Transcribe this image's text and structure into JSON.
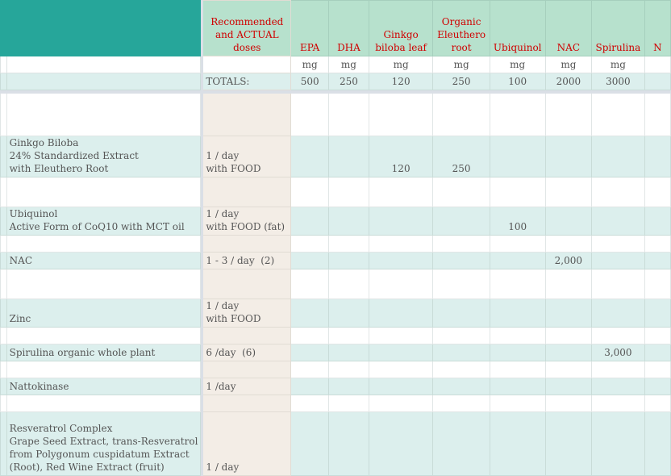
{
  "header": {
    "dose_label": "Recommended and ACTUAL doses",
    "columns": [
      "EPA",
      "DHA",
      "Ginkgo biloba leaf",
      "Organic Eleuthero root",
      "Ubiquinol",
      "NAC",
      "Spirulina",
      "N"
    ]
  },
  "units": [
    "mg",
    "mg",
    "mg",
    "mg",
    "mg",
    "mg",
    "mg",
    ""
  ],
  "totals": {
    "label": "TOTALS:",
    "values": [
      "500",
      "250",
      "120",
      "250",
      "100",
      "2000",
      "3000",
      ""
    ]
  },
  "rows": [
    {
      "name": "",
      "dose": "",
      "values": []
    },
    {
      "name": "Ginkgo Biloba\n24% Standardized Extract\nwith Eleuthero Root",
      "dose": "1 / day\nwith FOOD",
      "values": [
        "",
        "",
        "120",
        "250",
        "",
        "",
        "",
        ""
      ]
    },
    {
      "name": "",
      "dose": "",
      "values": []
    },
    {
      "name": "Ubiquinol\nActive Form of CoQ10 with MCT oil",
      "dose": "1 / day\nwith FOOD (fat)",
      "values": [
        "",
        "",
        "",
        "",
        "100",
        "",
        "",
        ""
      ]
    },
    {
      "name": "",
      "dose": "",
      "values": []
    },
    {
      "name": "NAC",
      "dose": "1 - 3 / day  (2)",
      "values": [
        "",
        "",
        "",
        "",
        "",
        "2,000",
        "",
        ""
      ]
    },
    {
      "name": "",
      "dose": "",
      "values": []
    },
    {
      "name": "Zinc",
      "dose": "1 / day\nwith FOOD",
      "values": []
    },
    {
      "name": "",
      "dose": "",
      "values": []
    },
    {
      "name": "Spirulina organic whole plant",
      "dose": "6 /day  (6)",
      "values": [
        "",
        "",
        "",
        "",
        "",
        "",
        "3,000",
        ""
      ]
    },
    {
      "name": "",
      "dose": "",
      "values": []
    },
    {
      "name": "Nattokinase",
      "dose": "1 /day",
      "values": []
    },
    {
      "name": "",
      "dose": "",
      "values": []
    },
    {
      "name": "Resveratrol Complex\nGrape Seed Extract, trans-Resveratrol\nfrom Polygonum cuspidatum Extract\n(Root), Red Wine Extract (fruit)",
      "dose": "1 / day",
      "values": []
    }
  ]
}
